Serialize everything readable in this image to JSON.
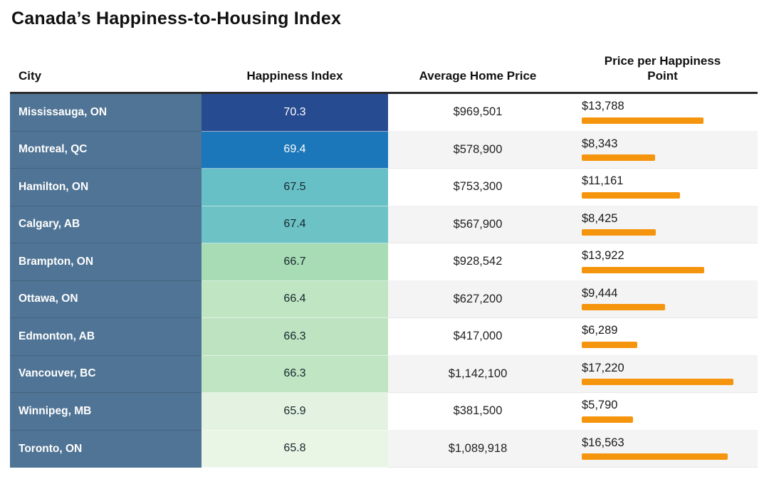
{
  "title": "Canada’s Happiness-to-Housing Index",
  "colors": {
    "bar_orange": "#f5950d",
    "city_column_bg": "#507495",
    "row_alt_bg": "#f4f4f4",
    "row_bg": "#ffffff",
    "header_border": "#2b2b2b",
    "title_text": "#111111"
  },
  "table": {
    "columns": [
      "City",
      "Happiness Index",
      "Average Home Price",
      "Price per Happiness Point"
    ],
    "max_price_per_point": 17220,
    "rows": [
      {
        "city": "Mississauga, ON",
        "happiness": "70.3",
        "home_price": "$969,501",
        "price_per_point": "$13,788",
        "ppp_value": 13788,
        "happiness_color": "#274b90",
        "happiness_text": "#ffffff"
      },
      {
        "city": "Montreal, QC",
        "happiness": "69.4",
        "home_price": "$578,900",
        "price_per_point": "$8,343",
        "ppp_value": 8343,
        "happiness_color": "#1b77b9",
        "happiness_text": "#ffffff"
      },
      {
        "city": "Hamilton, ON",
        "happiness": "67.5",
        "home_price": "$753,300",
        "price_per_point": "$11,161",
        "ppp_value": 11161,
        "happiness_color": "#67c0c6",
        "happiness_text": "#16262c"
      },
      {
        "city": "Calgary, AB",
        "happiness": "67.4",
        "home_price": "$567,900",
        "price_per_point": "$8,425",
        "ppp_value": 8425,
        "happiness_color": "#6cc2c4",
        "happiness_text": "#16262c"
      },
      {
        "city": "Brampton, ON",
        "happiness": "66.7",
        "home_price": "$928,542",
        "price_per_point": "$13,922",
        "ppp_value": 13922,
        "happiness_color": "#a7dcb5",
        "happiness_text": "#16262c"
      },
      {
        "city": "Ottawa, ON",
        "happiness": "66.4",
        "home_price": "$627,200",
        "price_per_point": "$9,444",
        "ppp_value": 9444,
        "happiness_color": "#c0e5c3",
        "happiness_text": "#16262c"
      },
      {
        "city": "Edmonton, AB",
        "happiness": "66.3",
        "home_price": "$417,000",
        "price_per_point": "$6,289",
        "ppp_value": 6289,
        "happiness_color": "#bde3c1",
        "happiness_text": "#16262c"
      },
      {
        "city": "Vancouver, BC",
        "happiness": "66.3",
        "home_price": "$1,142,100",
        "price_per_point": "$17,220",
        "ppp_value": 17220,
        "happiness_color": "#bfe5c3",
        "happiness_text": "#16262c"
      },
      {
        "city": "Winnipeg, MB",
        "happiness": "65.9",
        "home_price": "$381,500",
        "price_per_point": "$5,790",
        "ppp_value": 5790,
        "happiness_color": "#e4f3e1",
        "happiness_text": "#16262c"
      },
      {
        "city": "Toronto, ON",
        "happiness": "65.8",
        "home_price": "$1,089,918",
        "price_per_point": "$16,563",
        "ppp_value": 16563,
        "happiness_color": "#e9f6e6",
        "happiness_text": "#16262c"
      }
    ]
  },
  "chart_data": {
    "type": "table",
    "title": "Canada’s Happiness-to-Housing Index",
    "columns": [
      "City",
      "Happiness Index",
      "Average Home Price",
      "Price per Happiness Point"
    ],
    "categories": [
      "Mississauga, ON",
      "Montreal, QC",
      "Hamilton, ON",
      "Calgary, AB",
      "Brampton, ON",
      "Ottawa, ON",
      "Edmonton, AB",
      "Vancouver, BC",
      "Winnipeg, MB",
      "Toronto, ON"
    ],
    "series": [
      {
        "name": "Happiness Index",
        "values": [
          70.3,
          69.4,
          67.5,
          67.4,
          66.7,
          66.4,
          66.3,
          66.3,
          65.9,
          65.8
        ]
      },
      {
        "name": "Average Home Price",
        "values": [
          969501,
          578900,
          753300,
          567900,
          928542,
          627200,
          417000,
          1142100,
          381500,
          1089918
        ]
      },
      {
        "name": "Price per Happiness Point",
        "values": [
          13788,
          8343,
          11161,
          8425,
          13922,
          9444,
          6289,
          17220,
          5790,
          16563
        ]
      }
    ],
    "layout_hints": {
      "happiness_index_rendered_as": "heatmap cells (dark blue high to pale green low)",
      "price_per_point_rendered_as": "horizontal orange bars scaled to max 17220",
      "bar_color": "#f5950d",
      "legend": "none",
      "grid": "off"
    }
  }
}
